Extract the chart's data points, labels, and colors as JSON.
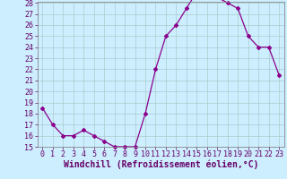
{
  "x": [
    0,
    1,
    2,
    3,
    4,
    5,
    6,
    7,
    8,
    9,
    10,
    11,
    12,
    13,
    14,
    15,
    16,
    17,
    18,
    19,
    20,
    21,
    22,
    23
  ],
  "y": [
    18.5,
    17.0,
    16.0,
    16.0,
    16.5,
    16.0,
    15.5,
    15.0,
    15.0,
    15.0,
    18.0,
    22.0,
    25.0,
    26.0,
    27.5,
    29.0,
    29.0,
    28.5,
    28.0,
    27.5,
    25.0,
    24.0,
    24.0,
    21.5
  ],
  "line_color": "#8B008B",
  "marker": "D",
  "marker_size": 2,
  "bg_color": "#cceeff",
  "grid_color": "#aacccc",
  "xlabel": "Windchill (Refroidissement éolien,°C)",
  "ylim": [
    15,
    28
  ],
  "xlim": [
    -0.5,
    23.5
  ],
  "yticks": [
    15,
    16,
    17,
    18,
    19,
    20,
    21,
    22,
    23,
    24,
    25,
    26,
    27,
    28
  ],
  "xticks": [
    0,
    1,
    2,
    3,
    4,
    5,
    6,
    7,
    8,
    9,
    10,
    11,
    12,
    13,
    14,
    15,
    16,
    17,
    18,
    19,
    20,
    21,
    22,
    23
  ],
  "xlabel_fontsize": 7,
  "tick_fontsize": 6,
  "label_color": "#660066",
  "spine_color": "#888888"
}
